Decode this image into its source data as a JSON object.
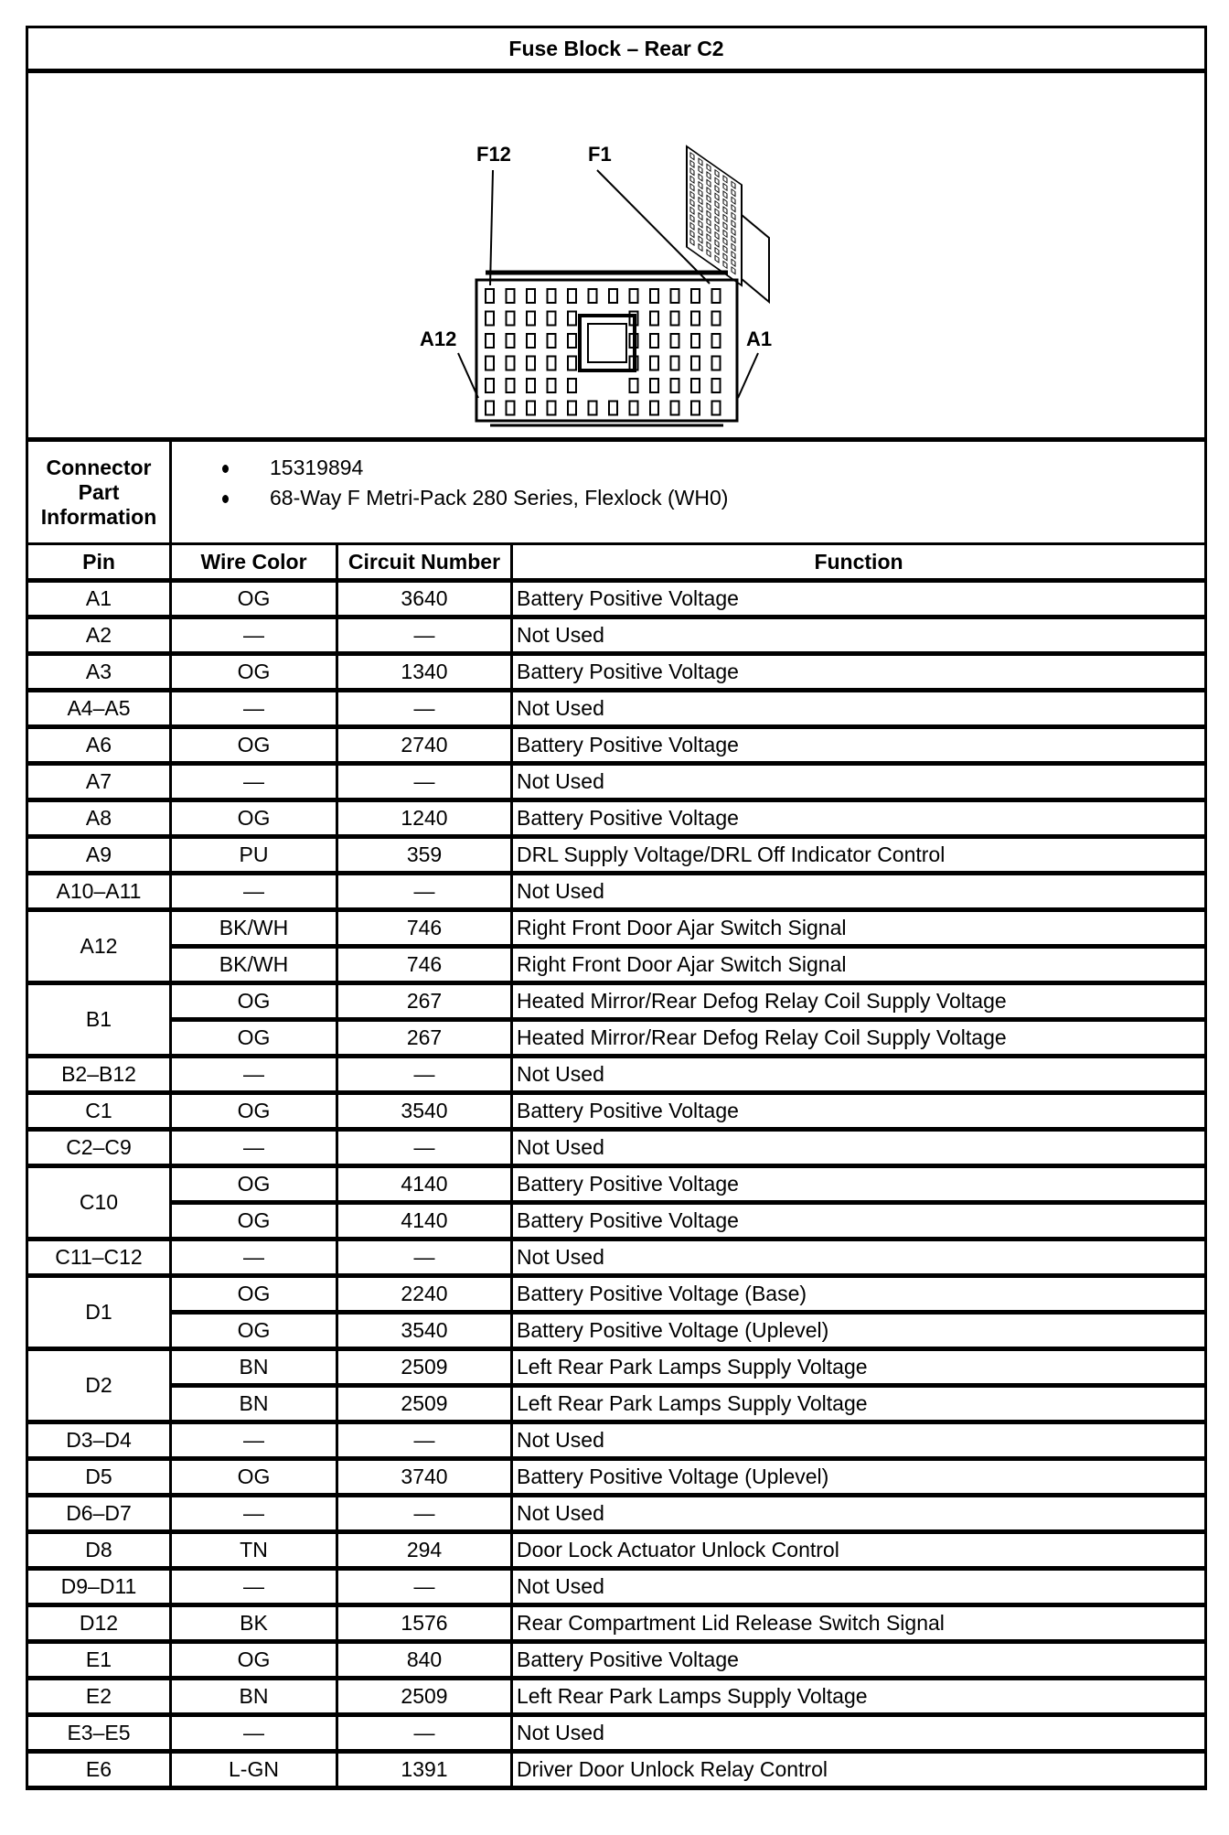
{
  "title": "Fuse Block – Rear C2",
  "diagram": {
    "labels": {
      "f12": "F12",
      "f1": "F1",
      "a12": "A12",
      "a1": "A1"
    }
  },
  "connector_info": {
    "label": "Connector Part Information",
    "items": [
      "15319894",
      "68-Way F Metri-Pack 280 Series, Flexlock (WH0)"
    ]
  },
  "headers": {
    "pin": "Pin",
    "wire": "Wire Color",
    "circuit": "Circuit Number",
    "function": "Function"
  },
  "rows": [
    {
      "pin": "A1",
      "entries": [
        {
          "wire": "OG",
          "circuit": "3640",
          "function": "Battery Positive Voltage"
        }
      ]
    },
    {
      "pin": "A2",
      "entries": [
        {
          "wire": "—",
          "circuit": "—",
          "function": "Not Used"
        }
      ]
    },
    {
      "pin": "A3",
      "entries": [
        {
          "wire": "OG",
          "circuit": "1340",
          "function": "Battery Positive Voltage"
        }
      ]
    },
    {
      "pin": "A4–A5",
      "entries": [
        {
          "wire": "—",
          "circuit": "—",
          "function": "Not Used"
        }
      ]
    },
    {
      "pin": "A6",
      "entries": [
        {
          "wire": "OG",
          "circuit": "2740",
          "function": "Battery Positive Voltage"
        }
      ]
    },
    {
      "pin": "A7",
      "entries": [
        {
          "wire": "—",
          "circuit": "—",
          "function": "Not Used"
        }
      ]
    },
    {
      "pin": "A8",
      "entries": [
        {
          "wire": "OG",
          "circuit": "1240",
          "function": "Battery Positive Voltage"
        }
      ]
    },
    {
      "pin": "A9",
      "entries": [
        {
          "wire": "PU",
          "circuit": "359",
          "function": "DRL Supply Voltage/DRL Off Indicator Control"
        }
      ]
    },
    {
      "pin": "A10–A11",
      "entries": [
        {
          "wire": "—",
          "circuit": "—",
          "function": "Not Used"
        }
      ]
    },
    {
      "pin": "A12",
      "entries": [
        {
          "wire": "BK/WH",
          "circuit": "746",
          "function": "Right Front Door Ajar Switch Signal"
        },
        {
          "wire": "BK/WH",
          "circuit": "746",
          "function": "Right Front Door Ajar Switch Signal"
        }
      ]
    },
    {
      "pin": "B1",
      "entries": [
        {
          "wire": "OG",
          "circuit": "267",
          "function": "Heated Mirror/Rear Defog Relay Coil Supply Voltage"
        },
        {
          "wire": "OG",
          "circuit": "267",
          "function": "Heated Mirror/Rear Defog Relay Coil Supply Voltage"
        }
      ]
    },
    {
      "pin": "B2–B12",
      "entries": [
        {
          "wire": "—",
          "circuit": "—",
          "function": "Not Used"
        }
      ]
    },
    {
      "pin": "C1",
      "entries": [
        {
          "wire": "OG",
          "circuit": "3540",
          "function": "Battery Positive Voltage"
        }
      ]
    },
    {
      "pin": "C2–C9",
      "entries": [
        {
          "wire": "—",
          "circuit": "—",
          "function": "Not Used"
        }
      ]
    },
    {
      "pin": "C10",
      "entries": [
        {
          "wire": "OG",
          "circuit": "4140",
          "function": "Battery Positive Voltage"
        },
        {
          "wire": "OG",
          "circuit": "4140",
          "function": "Battery Positive Voltage"
        }
      ]
    },
    {
      "pin": "C11–C12",
      "entries": [
        {
          "wire": "—",
          "circuit": "—",
          "function": "Not Used"
        }
      ]
    },
    {
      "pin": "D1",
      "entries": [
        {
          "wire": "OG",
          "circuit": "2240",
          "function": "Battery Positive Voltage (Base)"
        },
        {
          "wire": "OG",
          "circuit": "3540",
          "function": "Battery Positive Voltage (Uplevel)"
        }
      ]
    },
    {
      "pin": "D2",
      "entries": [
        {
          "wire": "BN",
          "circuit": "2509",
          "function": "Left Rear Park Lamps Supply Voltage"
        },
        {
          "wire": "BN",
          "circuit": "2509",
          "function": "Left Rear Park Lamps Supply Voltage"
        }
      ]
    },
    {
      "pin": "D3–D4",
      "entries": [
        {
          "wire": "—",
          "circuit": "—",
          "function": "Not Used"
        }
      ]
    },
    {
      "pin": "D5",
      "entries": [
        {
          "wire": "OG",
          "circuit": "3740",
          "function": "Battery Positive Voltage (Uplevel)"
        }
      ]
    },
    {
      "pin": "D6–D7",
      "entries": [
        {
          "wire": "—",
          "circuit": "—",
          "function": "Not Used"
        }
      ]
    },
    {
      "pin": "D8",
      "entries": [
        {
          "wire": "TN",
          "circuit": "294",
          "function": "Door Lock Actuator Unlock Control"
        }
      ]
    },
    {
      "pin": "D9–D11",
      "entries": [
        {
          "wire": "—",
          "circuit": "—",
          "function": "Not Used"
        }
      ]
    },
    {
      "pin": "D12",
      "entries": [
        {
          "wire": "BK",
          "circuit": "1576",
          "function": "Rear Compartment Lid Release Switch Signal"
        }
      ]
    },
    {
      "pin": "E1",
      "entries": [
        {
          "wire": "OG",
          "circuit": "840",
          "function": "Battery Positive Voltage"
        }
      ]
    },
    {
      "pin": "E2",
      "entries": [
        {
          "wire": "BN",
          "circuit": "2509",
          "function": "Left Rear Park Lamps Supply Voltage"
        }
      ]
    },
    {
      "pin": "E3–E5",
      "entries": [
        {
          "wire": "—",
          "circuit": "—",
          "function": "Not Used"
        }
      ]
    },
    {
      "pin": "E6",
      "entries": [
        {
          "wire": "L-GN",
          "circuit": "1391",
          "function": "Driver Door Unlock Relay Control"
        }
      ]
    }
  ]
}
